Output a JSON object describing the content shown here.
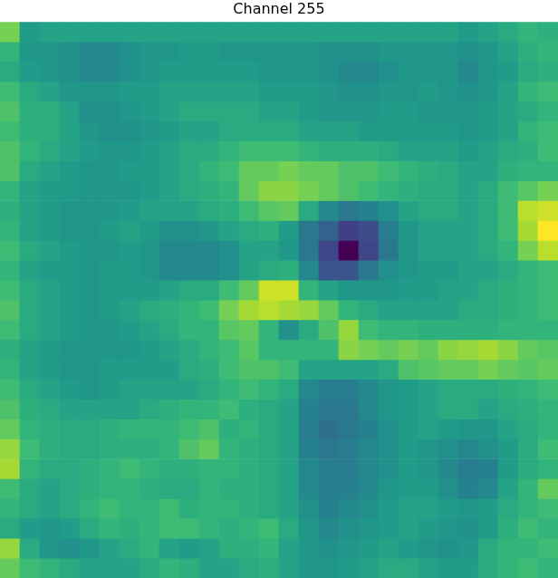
{
  "chart_data": {
    "type": "heatmap",
    "title": "Channel 255",
    "grid": false,
    "tick_labels": false,
    "cells": [
      [
        75,
        52,
        55,
        55,
        55,
        55,
        55,
        55,
        55,
        55,
        55,
        55,
        55,
        55,
        55,
        55,
        55,
        55,
        55,
        55,
        55,
        55,
        55,
        52,
        55,
        58,
        62,
        60
      ],
      [
        62,
        50,
        50,
        48,
        45,
        45,
        48,
        50,
        50,
        52,
        52,
        50,
        50,
        50,
        50,
        50,
        48,
        48,
        48,
        50,
        50,
        50,
        50,
        48,
        50,
        55,
        60,
        62
      ],
      [
        58,
        52,
        50,
        48,
        45,
        45,
        48,
        50,
        52,
        52,
        52,
        52,
        52,
        50,
        50,
        50,
        48,
        45,
        45,
        48,
        50,
        50,
        50,
        45,
        50,
        52,
        58,
        60
      ],
      [
        65,
        58,
        55,
        50,
        50,
        50,
        52,
        52,
        55,
        55,
        55,
        55,
        55,
        52,
        52,
        52,
        50,
        48,
        48,
        50,
        50,
        52,
        50,
        48,
        50,
        55,
        62,
        65
      ],
      [
        68,
        60,
        60,
        55,
        48,
        48,
        50,
        52,
        55,
        58,
        58,
        58,
        58,
        55,
        55,
        52,
        50,
        50,
        50,
        52,
        52,
        50,
        50,
        50,
        52,
        55,
        58,
        62
      ],
      [
        65,
        60,
        60,
        55,
        50,
        48,
        48,
        50,
        52,
        55,
        55,
        58,
        58,
        58,
        58,
        55,
        55,
        55,
        52,
        52,
        52,
        52,
        52,
        50,
        52,
        55,
        62,
        65
      ],
      [
        68,
        62,
        58,
        55,
        52,
        50,
        50,
        52,
        55,
        58,
        58,
        62,
        65,
        65,
        65,
        62,
        60,
        60,
        60,
        58,
        55,
        55,
        55,
        52,
        55,
        58,
        60,
        65
      ],
      [
        68,
        58,
        55,
        52,
        50,
        50,
        52,
        52,
        55,
        58,
        62,
        65,
        72,
        72,
        75,
        72,
        72,
        68,
        68,
        65,
        62,
        60,
        58,
        55,
        55,
        60,
        62,
        62
      ],
      [
        62,
        55,
        52,
        52,
        50,
        50,
        50,
        52,
        55,
        58,
        60,
        62,
        72,
        78,
        78,
        75,
        72,
        68,
        65,
        62,
        60,
        58,
        58,
        55,
        58,
        65,
        70,
        75
      ],
      [
        60,
        55,
        52,
        50,
        50,
        50,
        52,
        55,
        55,
        55,
        58,
        60,
        65,
        70,
        72,
        58,
        45,
        38,
        42,
        48,
        55,
        58,
        58,
        55,
        58,
        65,
        85,
        88
      ],
      [
        62,
        55,
        52,
        50,
        50,
        52,
        55,
        52,
        48,
        48,
        50,
        55,
        58,
        60,
        52,
        38,
        30,
        18,
        22,
        40,
        50,
        55,
        55,
        55,
        58,
        65,
        82,
        95
      ],
      [
        65,
        58,
        55,
        52,
        50,
        50,
        52,
        50,
        45,
        45,
        45,
        48,
        55,
        55,
        50,
        38,
        20,
        0,
        20,
        38,
        50,
        55,
        55,
        55,
        58,
        62,
        75,
        85
      ],
      [
        62,
        55,
        52,
        52,
        50,
        52,
        52,
        50,
        45,
        45,
        45,
        48,
        55,
        58,
        60,
        45,
        25,
        25,
        38,
        48,
        50,
        52,
        52,
        55,
        55,
        58,
        62,
        65
      ],
      [
        65,
        58,
        55,
        52,
        50,
        52,
        52,
        52,
        55,
        58,
        58,
        65,
        72,
        88,
        88,
        62,
        55,
        50,
        50,
        50,
        52,
        52,
        55,
        55,
        58,
        60,
        62,
        65
      ],
      [
        68,
        58,
        55,
        52,
        50,
        52,
        55,
        58,
        60,
        62,
        65,
        75,
        82,
        85,
        82,
        80,
        72,
        62,
        58,
        55,
        55,
        55,
        55,
        58,
        58,
        60,
        62,
        65
      ],
      [
        65,
        58,
        55,
        52,
        50,
        50,
        52,
        55,
        58,
        62,
        62,
        70,
        72,
        62,
        48,
        58,
        68,
        80,
        65,
        62,
        62,
        60,
        60,
        60,
        60,
        62,
        62,
        62
      ],
      [
        60,
        55,
        52,
        50,
        50,
        50,
        50,
        52,
        55,
        58,
        62,
        65,
        70,
        62,
        62,
        62,
        62,
        78,
        75,
        72,
        75,
        72,
        78,
        80,
        82,
        78,
        72,
        70
      ],
      [
        62,
        55,
        52,
        50,
        50,
        52,
        52,
        52,
        52,
        58,
        60,
        65,
        68,
        68,
        65,
        55,
        55,
        55,
        55,
        58,
        68,
        70,
        72,
        72,
        75,
        72,
        70,
        72
      ],
      [
        65,
        58,
        55,
        52,
        50,
        52,
        55,
        55,
        55,
        55,
        58,
        62,
        65,
        62,
        58,
        45,
        40,
        40,
        45,
        50,
        52,
        55,
        58,
        58,
        58,
        60,
        62,
        65
      ],
      [
        68,
        60,
        58,
        55,
        55,
        55,
        55,
        58,
        60,
        62,
        62,
        65,
        60,
        58,
        55,
        42,
        38,
        38,
        45,
        50,
        52,
        55,
        58,
        58,
        55,
        58,
        60,
        62
      ],
      [
        72,
        62,
        60,
        58,
        58,
        60,
        62,
        62,
        62,
        65,
        68,
        60,
        62,
        58,
        55,
        40,
        35,
        38,
        42,
        48,
        52,
        55,
        52,
        50,
        50,
        55,
        58,
        62
      ],
      [
        80,
        65,
        60,
        58,
        58,
        60,
        60,
        60,
        62,
        68,
        72,
        62,
        60,
        58,
        55,
        42,
        38,
        40,
        45,
        48,
        52,
        50,
        48,
        45,
        48,
        52,
        58,
        65
      ],
      [
        82,
        62,
        58,
        58,
        60,
        62,
        65,
        62,
        60,
        60,
        62,
        62,
        60,
        58,
        55,
        45,
        40,
        40,
        45,
        48,
        52,
        50,
        45,
        40,
        42,
        52,
        58,
        62
      ],
      [
        65,
        58,
        55,
        58,
        60,
        62,
        62,
        60,
        58,
        58,
        62,
        60,
        60,
        58,
        55,
        45,
        40,
        42,
        45,
        50,
        52,
        52,
        48,
        42,
        45,
        55,
        62,
        72
      ],
      [
        62,
        58,
        55,
        58,
        62,
        65,
        62,
        62,
        65,
        60,
        62,
        62,
        60,
        58,
        55,
        48,
        42,
        45,
        48,
        52,
        55,
        55,
        52,
        50,
        52,
        58,
        62,
        65
      ],
      [
        58,
        52,
        50,
        52,
        58,
        62,
        60,
        62,
        65,
        65,
        62,
        60,
        62,
        65,
        58,
        50,
        45,
        48,
        50,
        52,
        55,
        52,
        50,
        48,
        52,
        60,
        65,
        62
      ],
      [
        80,
        58,
        50,
        48,
        50,
        55,
        58,
        62,
        55,
        52,
        55,
        60,
        60,
        62,
        55,
        50,
        48,
        50,
        52,
        55,
        52,
        50,
        48,
        50,
        58,
        62,
        62,
        65
      ],
      [
        72,
        65,
        62,
        58,
        55,
        55,
        55,
        58,
        62,
        60,
        55,
        55,
        58,
        60,
        55,
        50,
        50,
        52,
        55,
        58,
        58,
        55,
        52,
        52,
        58,
        62,
        65,
        62
      ]
    ]
  }
}
